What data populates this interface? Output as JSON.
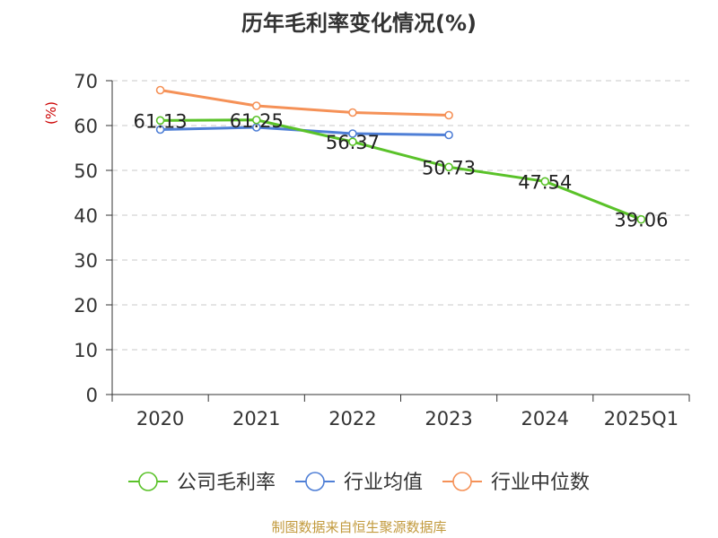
{
  "chart_data": {
    "type": "line",
    "title": "历年毛利率变化情况(%)",
    "ylabel": "(%)",
    "xlabel": "",
    "categories": [
      "2020",
      "2021",
      "2022",
      "2023",
      "2024",
      "2025Q1"
    ],
    "ylim": [
      0,
      70
    ],
    "yticks": [
      "0",
      "10",
      "20",
      "30",
      "40",
      "50",
      "60",
      "70"
    ],
    "grid": "horizontal dashed",
    "legend_position": "bottom",
    "series": [
      {
        "name": "公司毛利率",
        "color": "#5ac229",
        "values": [
          61.13,
          61.25,
          56.37,
          50.73,
          47.54,
          39.06
        ],
        "labels": [
          "61.13",
          "61.25",
          "56.37",
          "50.73",
          "47.54",
          "39.06"
        ]
      },
      {
        "name": "行业均值",
        "color": "#4f7fd6",
        "values": [
          59.1,
          59.6,
          58.2,
          57.9,
          null,
          null
        ]
      },
      {
        "name": "行业中位数",
        "color": "#f59157",
        "values": [
          67.9,
          64.4,
          62.9,
          62.3,
          null,
          null
        ]
      }
    ]
  },
  "source_text": "制图数据来自恒生聚源数据库"
}
